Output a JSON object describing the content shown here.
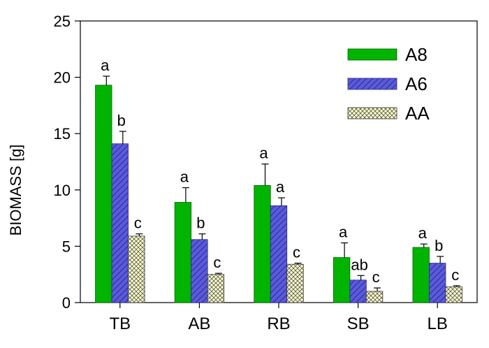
{
  "chart_data": {
    "type": "bar",
    "title": "",
    "xlabel": "",
    "ylabel": "BIOMASS [g]",
    "ylim": [
      0,
      25
    ],
    "yticks": [
      0,
      5,
      10,
      15,
      20,
      25
    ],
    "grid": false,
    "legend_position": "top-right",
    "categories": [
      "TB",
      "AB",
      "RB",
      "SB",
      "LB"
    ],
    "series": [
      {
        "name": "A8",
        "color": "#00b400",
        "pattern": "solid",
        "values": [
          19.3,
          8.9,
          10.4,
          4.0,
          4.9
        ],
        "errors": [
          0.8,
          1.3,
          1.9,
          1.3,
          0.3
        ],
        "significance": [
          "a",
          "a",
          "a",
          "a",
          "a"
        ]
      },
      {
        "name": "A6",
        "color": "#5a5adc",
        "pattern": "diagonal-hatch",
        "values": [
          14.1,
          5.6,
          8.6,
          2.0,
          3.5
        ],
        "errors": [
          1.1,
          0.5,
          0.7,
          0.4,
          0.6
        ],
        "significance": [
          "b",
          "b",
          "a",
          "ab",
          "b"
        ]
      },
      {
        "name": "AA",
        "color": "#ffffc8",
        "pattern": "cross-hatch",
        "values": [
          5.9,
          2.5,
          3.4,
          1.0,
          1.4
        ],
        "errors": [
          0.2,
          0.1,
          0.1,
          0.3,
          0.1
        ],
        "significance": [
          "c",
          "c",
          "c",
          "c",
          "c"
        ]
      }
    ]
  }
}
